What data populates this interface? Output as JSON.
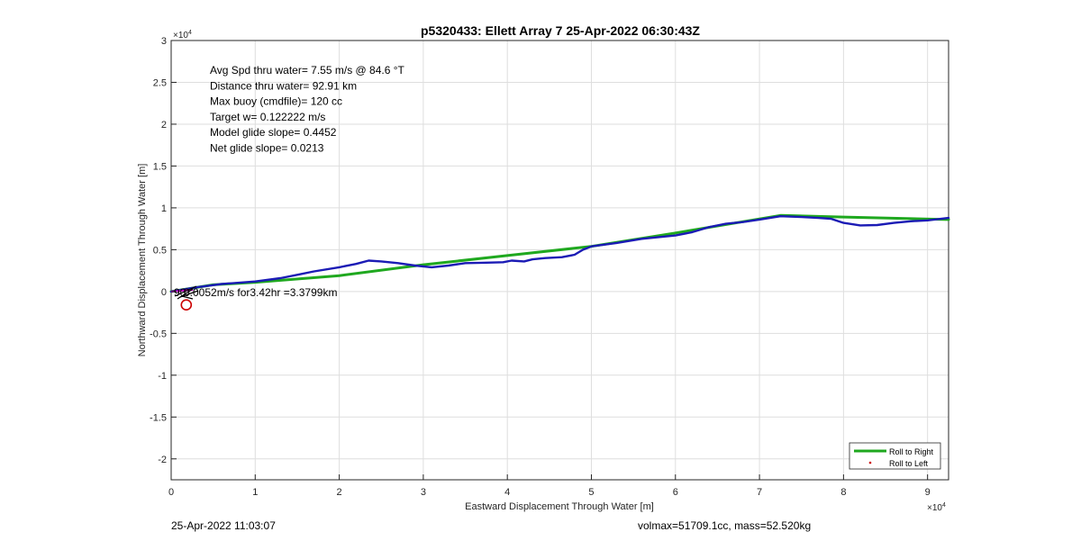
{
  "chart_data": {
    "type": "line",
    "title": "p5320433: Ellett Array 7 25-Apr-2022 06:30:43Z",
    "xlabel": "Eastward Displacement Through Water [m]",
    "ylabel": "Northward Displacement Through Water [m]",
    "xlim": [
      0,
      92500
    ],
    "ylim": [
      -22500,
      30000
    ],
    "x_exponent": "×10",
    "x_exponent_power": "4",
    "y_exponent": "×10",
    "y_exponent_power": "4",
    "xticks": [
      0,
      10000,
      20000,
      30000,
      40000,
      50000,
      60000,
      70000,
      80000,
      90000
    ],
    "xtick_labels": [
      "0",
      "1",
      "2",
      "3",
      "4",
      "5",
      "6",
      "7",
      "8",
      "9"
    ],
    "yticks": [
      -20000,
      -15000,
      -10000,
      -5000,
      0,
      5000,
      10000,
      15000,
      20000,
      25000,
      30000
    ],
    "ytick_labels": [
      "-2",
      "-1.5",
      "-1",
      "-0.5",
      "0",
      "0.5",
      "1",
      "1.5",
      "2",
      "2.5",
      "3"
    ],
    "grid": true,
    "legend_position": "bottom-right",
    "legend": [
      {
        "name": "Roll to Right",
        "color": "#1fa81f",
        "marker": "line"
      },
      {
        "name": "Roll to Left",
        "color": "#cc0000",
        "marker": "dot"
      }
    ],
    "annotations": [
      "Avg Spd thru water=  7.55 m/s @  84.6 °T",
      "Distance thru water= 92.91 km",
      "Max buoy (cmdfile)= 120 cc",
      "Target w= 0.122222 m/s",
      "Model glide slope= 0.4452",
      "Net glide slope= 0.0213"
    ],
    "current_label": "0.0052m/s for3.42hr =3.3799km",
    "current_label_overlap": "90",
    "series": [
      {
        "color": "#1fa81f",
        "points": [
          [
            0,
            0
          ],
          [
            5000,
            800
          ],
          [
            10000,
            1100
          ],
          [
            20000,
            1900
          ],
          [
            30000,
            3200
          ],
          [
            40000,
            4300
          ],
          [
            50000,
            5400
          ],
          [
            60000,
            7000
          ],
          [
            72500,
            9100
          ],
          [
            80000,
            8900
          ],
          [
            92500,
            8600
          ]
        ]
      },
      {
        "color": "#1b1bb5",
        "points": [
          [
            0,
            0
          ],
          [
            3000,
            500
          ],
          [
            6000,
            900
          ],
          [
            10000,
            1200
          ],
          [
            13000,
            1600
          ],
          [
            15000,
            2000
          ],
          [
            17000,
            2400
          ],
          [
            20000,
            2900
          ],
          [
            22000,
            3300
          ],
          [
            23500,
            3700
          ],
          [
            25000,
            3600
          ],
          [
            27000,
            3400
          ],
          [
            29000,
            3100
          ],
          [
            31000,
            2900
          ],
          [
            33000,
            3100
          ],
          [
            35000,
            3400
          ],
          [
            37500,
            3450
          ],
          [
            39500,
            3500
          ],
          [
            40500,
            3700
          ],
          [
            42000,
            3600
          ],
          [
            43000,
            3850
          ],
          [
            44500,
            4000
          ],
          [
            46500,
            4100
          ],
          [
            48000,
            4400
          ],
          [
            49000,
            5000
          ],
          [
            50000,
            5400
          ],
          [
            53000,
            5800
          ],
          [
            56000,
            6300
          ],
          [
            58000,
            6500
          ],
          [
            60000,
            6700
          ],
          [
            62000,
            7100
          ],
          [
            64000,
            7700
          ],
          [
            66000,
            8100
          ],
          [
            68000,
            8300
          ],
          [
            70000,
            8600
          ],
          [
            72500,
            9000
          ],
          [
            75000,
            8900
          ],
          [
            77000,
            8800
          ],
          [
            78500,
            8700
          ],
          [
            80000,
            8200
          ],
          [
            82000,
            7900
          ],
          [
            84000,
            7950
          ],
          [
            86000,
            8200
          ],
          [
            88000,
            8400
          ],
          [
            90000,
            8500
          ],
          [
            92500,
            8800
          ]
        ]
      }
    ],
    "left_marker": {
      "x": 1800,
      "y": -1600,
      "color": "#cc0000"
    }
  },
  "footer": {
    "timestamp": "25-Apr-2022 11:03:07",
    "volmax": "volmax=51709.1cc, mass=52.520kg"
  }
}
